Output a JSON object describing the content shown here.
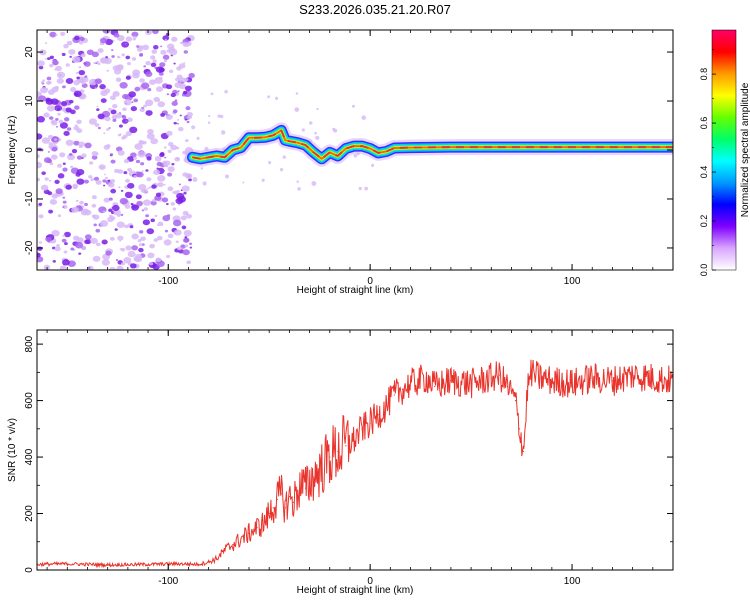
{
  "figure_title": "S233.2026.035.21.20.R07",
  "colors": {
    "snr_line": "#e8342c",
    "scatter_dot": "#8a2be2",
    "ridge_core": "#e8342c"
  },
  "chart_data": [
    {
      "type": "heatmap",
      "title": "S233.2026.035.21.20.R07",
      "xlabel": "Height of straight line (km)",
      "ylabel": "Frequency (Hz)",
      "xlim": [
        -165,
        150
      ],
      "ylim": [
        -24.5,
        24.5
      ],
      "xticks": [
        -100,
        0,
        100
      ],
      "yticks": [
        -20,
        -10,
        0,
        10,
        20
      ],
      "noise_region_x": [
        -165,
        -88
      ],
      "frequency_ridge": {
        "x": [
          -88,
          -84,
          -80,
          -76,
          -72,
          -68,
          -64,
          -60,
          -56,
          -52,
          -48,
          -44,
          -42,
          -40,
          -36,
          -32,
          -28,
          -24,
          -20,
          -16,
          -12,
          -8,
          -4,
          0,
          4,
          8,
          12,
          20,
          40,
          60,
          80,
          100,
          120,
          150
        ],
        "y": [
          -1.5,
          -1.8,
          -1.5,
          -1.2,
          -1.5,
          0.0,
          0.5,
          2.5,
          2.5,
          2.6,
          3.0,
          4.0,
          2.0,
          1.8,
          1.5,
          1.0,
          -0.5,
          -1.8,
          -0.5,
          -1.2,
          0.3,
          0.8,
          0.8,
          0.3,
          -0.6,
          -0.3,
          0.4,
          0.5,
          0.6,
          0.6,
          0.6,
          0.6,
          0.6,
          0.6
        ]
      },
      "colorbar": {
        "label": "Normalized spectral amplitude",
        "range": [
          0,
          0.98
        ],
        "ticks": [
          "0.0",
          "0.2",
          "0.4",
          "0.6",
          "0.8"
        ],
        "colors": [
          "#ffffff",
          "#d9a6ff",
          "#7f00ff",
          "#0000ff",
          "#0099ff",
          "#00ffff",
          "#00ff66",
          "#66ff00",
          "#ffff00",
          "#ff9900",
          "#ff0000",
          "#ff0066"
        ]
      }
    },
    {
      "type": "line",
      "xlabel": "Height of straight line (km)",
      "ylabel": "SNR (10 * v/v)",
      "xlim": [
        -165,
        150
      ],
      "ylim": [
        0,
        850
      ],
      "xticks": [
        -100,
        0,
        100
      ],
      "yticks": [
        0,
        200,
        400,
        600,
        800
      ],
      "series": [
        {
          "name": "SNR",
          "x": [
            -165,
            -150,
            -130,
            -110,
            -95,
            -85,
            -80,
            -76,
            -72,
            -68,
            -64,
            -60,
            -56,
            -52,
            -50,
            -48,
            -46,
            -44,
            -42,
            -40,
            -38,
            -36,
            -34,
            -32,
            -30,
            -28,
            -24,
            -20,
            -16,
            -12,
            -8,
            -4,
            0,
            4,
            8,
            12,
            16,
            20,
            24,
            28,
            32,
            40,
            50,
            60,
            64,
            68,
            72,
            74,
            76,
            78,
            80,
            84,
            90,
            100,
            110,
            120,
            130,
            140,
            150
          ],
          "values": [
            20,
            22,
            18,
            20,
            22,
            20,
            28,
            40,
            70,
            90,
            110,
            130,
            150,
            170,
            200,
            220,
            250,
            270,
            220,
            260,
            240,
            280,
            300,
            290,
            310,
            330,
            360,
            400,
            420,
            440,
            460,
            500,
            520,
            550,
            580,
            620,
            640,
            660,
            670,
            680,
            650,
            670,
            660,
            680,
            690,
            650,
            600,
            500,
            420,
            650,
            700,
            680,
            670,
            660,
            680,
            670,
            690,
            680,
            670
          ]
        }
      ]
    }
  ]
}
